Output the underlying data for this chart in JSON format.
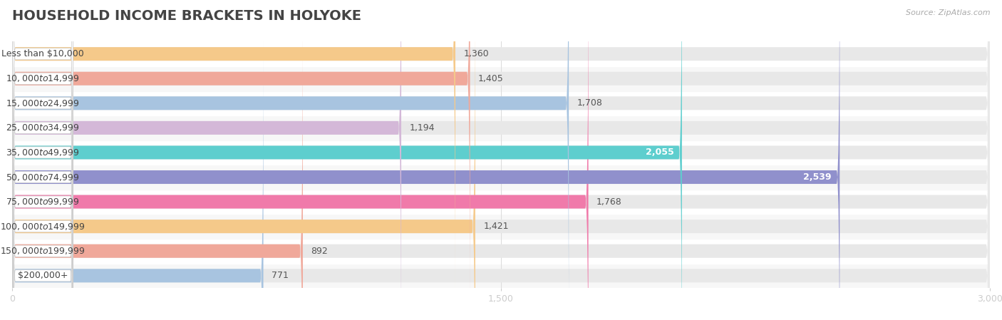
{
  "title": "HOUSEHOLD INCOME BRACKETS IN HOLYOKE",
  "source": "Source: ZipAtlas.com",
  "categories": [
    "Less than $10,000",
    "$10,000 to $14,999",
    "$15,000 to $24,999",
    "$25,000 to $34,999",
    "$35,000 to $49,999",
    "$50,000 to $74,999",
    "$75,000 to $99,999",
    "$100,000 to $149,999",
    "$150,000 to $199,999",
    "$200,000+"
  ],
  "values": [
    1360,
    1405,
    1708,
    1194,
    2055,
    2539,
    1768,
    1421,
    892,
    771
  ],
  "bar_colors": [
    "#f5c98a",
    "#f0a89a",
    "#a8c4e0",
    "#d4b8d8",
    "#5ecece",
    "#9090cc",
    "#f07aaa",
    "#f5c98a",
    "#f0a89a",
    "#a8c4e0"
  ],
  "xlim": [
    0,
    3000
  ],
  "xticks": [
    0,
    1500,
    3000
  ],
  "background_color": "#ffffff",
  "row_colors": [
    "#f7f7f7",
    "#ffffff"
  ],
  "title_fontsize": 14,
  "label_fontsize": 9,
  "value_fontsize": 9,
  "bar_height": 0.55,
  "value_inside_threshold": 2000
}
